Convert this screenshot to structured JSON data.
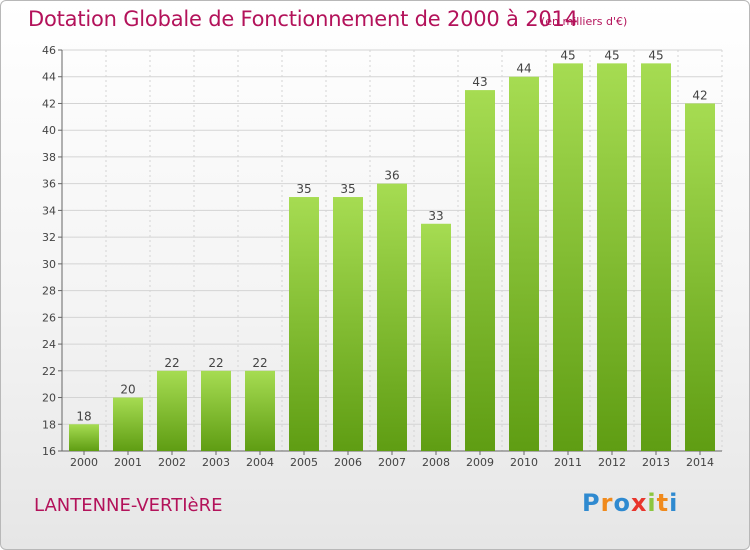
{
  "title": "Dotation Globale de Fonctionnement de 2000 à 2014",
  "subtitle": "(en milliers d'€)",
  "commune": "LANTENNE-VERTIèRE",
  "logo": {
    "letters": [
      "P",
      "r",
      "o",
      "x",
      "i",
      "t",
      "i"
    ],
    "colors": [
      "#2f8ad0",
      "#f08a1c",
      "#2f8ad0",
      "#e8352c",
      "#8cc63f",
      "#f08a1c",
      "#2f8ad0"
    ]
  },
  "colors": {
    "bar_light": "#a6dc52",
    "bar_dark": "#5f9d13",
    "title": "#b3125a",
    "grid": "#d4d4d4"
  },
  "chart_data": {
    "type": "bar",
    "title": "Dotation Globale de Fonctionnement de 2000 à 2014",
    "subtitle": "(en milliers d'€)",
    "categories": [
      "2000",
      "2001",
      "2002",
      "2003",
      "2004",
      "2005",
      "2006",
      "2007",
      "2008",
      "2009",
      "2010",
      "2011",
      "2012",
      "2013",
      "2014"
    ],
    "values": [
      18,
      20,
      22,
      22,
      22,
      35,
      35,
      36,
      33,
      43,
      44,
      45,
      45,
      45,
      42
    ],
    "ylim": [
      16,
      46
    ],
    "yticks": [
      16,
      18,
      20,
      22,
      24,
      26,
      28,
      30,
      32,
      34,
      36,
      38,
      40,
      42,
      44,
      46
    ],
    "grid": true,
    "legend": "none"
  }
}
